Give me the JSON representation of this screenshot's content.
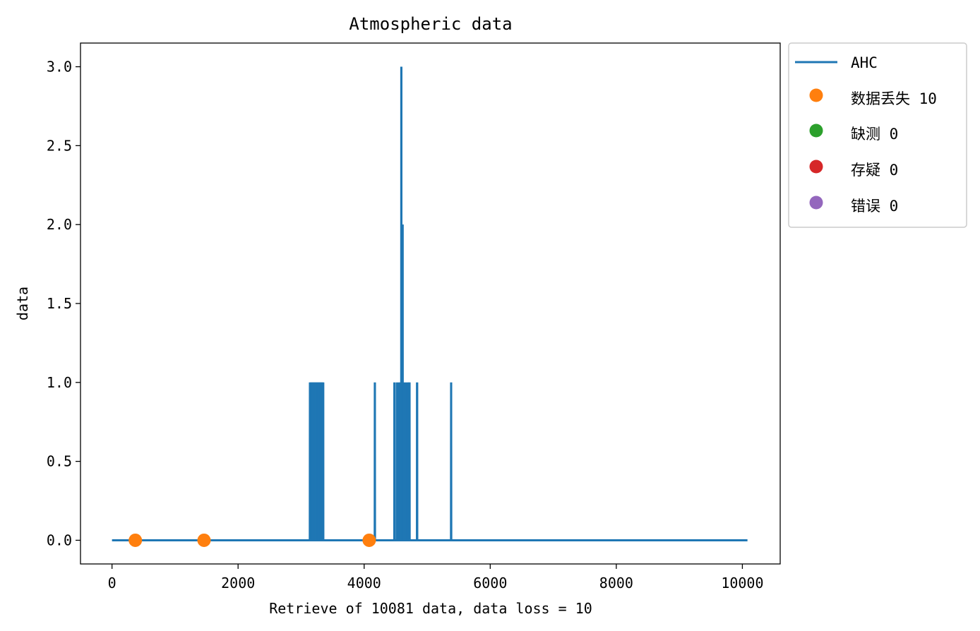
{
  "chart_data": {
    "type": "line",
    "title": "Atmospheric data",
    "xlabel": "Retrieve of 10081 data, data loss = 10",
    "ylabel": "data",
    "xlim": [
      -500,
      10600
    ],
    "ylim": [
      -0.15,
      3.15
    ],
    "xticks": [
      0,
      2000,
      4000,
      6000,
      8000,
      10000
    ],
    "xtick_labels": [
      "0",
      "2000",
      "4000",
      "6000",
      "8000",
      "10000"
    ],
    "yticks": [
      0,
      0.5,
      1,
      1.5,
      2,
      2.5,
      3
    ],
    "ytick_labels": [
      "0.0",
      "0.5",
      "1.0",
      "1.5",
      "2.0",
      "2.5",
      "3.0"
    ],
    "grid": false,
    "legend_position": "outside-top-right",
    "series": [
      {
        "name": "AHC",
        "kind": "line",
        "color": "#1f77b4",
        "x_range": [
          0,
          10081
        ],
        "baseline": 0,
        "spikes": [
          {
            "x": 3140,
            "y": 1
          },
          {
            "x": 3150,
            "y": 1
          },
          {
            "x": 3160,
            "y": 1
          },
          {
            "x": 3170,
            "y": 1
          },
          {
            "x": 3180,
            "y": 1
          },
          {
            "x": 3190,
            "y": 1
          },
          {
            "x": 3200,
            "y": 1
          },
          {
            "x": 3210,
            "y": 1
          },
          {
            "x": 3220,
            "y": 1
          },
          {
            "x": 3230,
            "y": 1
          },
          {
            "x": 3240,
            "y": 1
          },
          {
            "x": 3250,
            "y": 1
          },
          {
            "x": 3260,
            "y": 1
          },
          {
            "x": 3270,
            "y": 1
          },
          {
            "x": 3280,
            "y": 1
          },
          {
            "x": 3290,
            "y": 1
          },
          {
            "x": 3300,
            "y": 1
          },
          {
            "x": 3310,
            "y": 1
          },
          {
            "x": 3320,
            "y": 1
          },
          {
            "x": 3330,
            "y": 1
          },
          {
            "x": 3340,
            "y": 1
          },
          {
            "x": 3350,
            "y": 1
          },
          {
            "x": 4170,
            "y": 1
          },
          {
            "x": 4480,
            "y": 1
          },
          {
            "x": 4520,
            "y": 1
          },
          {
            "x": 4550,
            "y": 1
          },
          {
            "x": 4570,
            "y": 1
          },
          {
            "x": 4590,
            "y": 3
          },
          {
            "x": 4610,
            "y": 2
          },
          {
            "x": 4630,
            "y": 1
          },
          {
            "x": 4660,
            "y": 1
          },
          {
            "x": 4690,
            "y": 1
          },
          {
            "x": 4710,
            "y": 1
          },
          {
            "x": 4720,
            "y": 1
          },
          {
            "x": 4840,
            "y": 1
          },
          {
            "x": 5380,
            "y": 1
          }
        ]
      },
      {
        "name": "数据丢失 10",
        "kind": "marker",
        "color": "#ff7f0e",
        "points": [
          {
            "x": 370,
            "y": 0
          },
          {
            "x": 1460,
            "y": 0
          },
          {
            "x": 4080,
            "y": 0
          }
        ]
      },
      {
        "name": "缺测 0",
        "kind": "marker",
        "color": "#2ca02c",
        "points": []
      },
      {
        "name": "存疑 0",
        "kind": "marker",
        "color": "#d62728",
        "points": []
      },
      {
        "name": "错误 0",
        "kind": "marker",
        "color": "#9467bd",
        "points": []
      }
    ]
  }
}
